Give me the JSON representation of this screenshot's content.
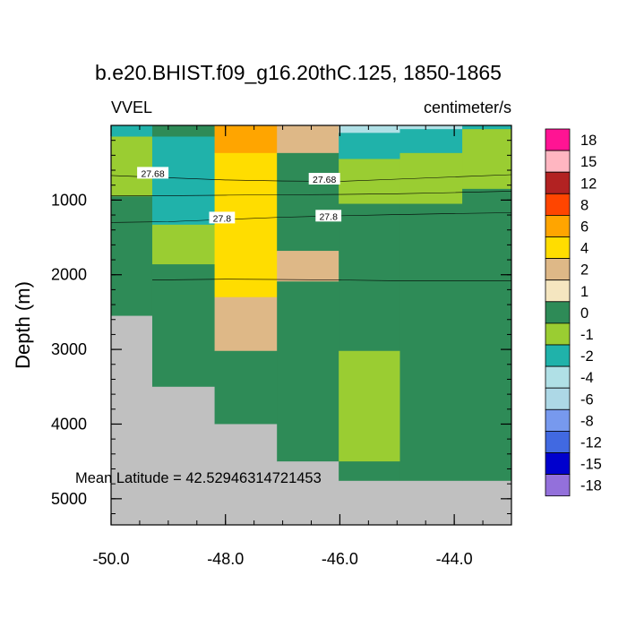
{
  "chart_data": {
    "type": "heatmap",
    "title": "b.e20.BHIST.f09_g16.20thC.125, 1850-1865",
    "left_string": "VVEL",
    "right_string": "centimeter/s",
    "ylabel": "Depth (m)",
    "annotation": "Mean Latitude = 42.52946314721453",
    "xlim": [
      -50.0,
      -43.0
    ],
    "ylim": [
      5350,
      0
    ],
    "x_ticks": [
      -50.0,
      -48.0,
      -46.0,
      -44.0
    ],
    "x_tick_labels": [
      "-50.0",
      "-48.0",
      "-46.0",
      "-44.0"
    ],
    "y_ticks": [
      1000,
      2000,
      3000,
      4000,
      5000
    ],
    "y_tick_labels": [
      "1000",
      "2000",
      "3000",
      "4000",
      "5000"
    ],
    "legend_levels": [
      "18",
      "15",
      "12",
      "8",
      "6",
      "4",
      "2",
      "1",
      "0",
      "-1",
      "-2",
      "-4",
      "-6",
      "-8",
      "-12",
      "-15",
      "-18"
    ],
    "legend_colors": [
      "#ff1493",
      "#ffb6c1",
      "#b22222",
      "#ff4500",
      "#ffa500",
      "#ffdd00",
      "#deb887",
      "#f5e6c0",
      "#2e8b57",
      "#9acd32",
      "#20b2aa",
      "#b0e0e6",
      "#add8e6",
      "#7799ee",
      "#4169e1",
      "#0000cd",
      "#9370db"
    ],
    "fill_color": "#c0c0c0",
    "columns": [
      {
        "x0": -50.0,
        "x1": -49.28,
        "cells": [
          [
            0,
            150,
            "-2"
          ],
          [
            150,
            950,
            "-1"
          ],
          [
            950,
            2550,
            "0"
          ],
          [
            2550,
            5350,
            "fill"
          ]
        ]
      },
      {
        "x0": -49.28,
        "x1": -48.19,
        "cells": [
          [
            0,
            150,
            "0"
          ],
          [
            150,
            1330,
            "-2"
          ],
          [
            1330,
            1860,
            "-1"
          ],
          [
            1860,
            3500,
            "0"
          ],
          [
            3500,
            5350,
            "fill"
          ]
        ]
      },
      {
        "x0": -48.19,
        "x1": -47.1,
        "cells": [
          [
            0,
            370,
            "6"
          ],
          [
            370,
            2300,
            "4"
          ],
          [
            2300,
            3020,
            "2"
          ],
          [
            3020,
            4000,
            "0"
          ],
          [
            4000,
            5350,
            "fill"
          ]
        ]
      },
      {
        "x0": -47.1,
        "x1": -46.02,
        "cells": [
          [
            0,
            370,
            "2"
          ],
          [
            370,
            1680,
            "0"
          ],
          [
            1680,
            2090,
            "2"
          ],
          [
            2090,
            4500,
            "0"
          ],
          [
            4500,
            5350,
            "fill"
          ]
        ]
      },
      {
        "x0": -46.02,
        "x1": -44.95,
        "cells": [
          [
            0,
            100,
            "-4"
          ],
          [
            100,
            450,
            "-2"
          ],
          [
            450,
            1050,
            "-1"
          ],
          [
            1050,
            3020,
            "0"
          ],
          [
            3020,
            4500,
            "-1"
          ],
          [
            4500,
            4760,
            "0"
          ],
          [
            4760,
            5350,
            "fill"
          ]
        ]
      },
      {
        "x0": -44.95,
        "x1": -43.86,
        "cells": [
          [
            0,
            50,
            "-4"
          ],
          [
            50,
            370,
            "-2"
          ],
          [
            370,
            1050,
            "-1"
          ],
          [
            1050,
            4760,
            "0"
          ],
          [
            4760,
            5350,
            "fill"
          ]
        ]
      },
      {
        "x0": -43.86,
        "x1": -43.0,
        "cells": [
          [
            0,
            50,
            "-2"
          ],
          [
            50,
            850,
            "-1"
          ],
          [
            850,
            4760,
            "0"
          ],
          [
            4760,
            5350,
            "fill"
          ]
        ]
      }
    ],
    "contours": [
      {
        "label": "27.68",
        "points": [
          [
            -50.0,
            670
          ],
          [
            -49.0,
            700
          ],
          [
            -48.0,
            730
          ],
          [
            -47.0,
            745
          ],
          [
            -46.0,
            750
          ],
          [
            -45.0,
            720
          ],
          [
            -44.0,
            690
          ],
          [
            -43.0,
            660
          ]
        ],
        "label_positions": [
          [
            -49.27,
            640
          ],
          [
            -46.27,
            720
          ]
        ]
      },
      {
        "label": "",
        "points": [
          [
            -50.0,
            940
          ],
          [
            -49.0,
            940
          ],
          [
            -48.0,
            935
          ],
          [
            -47.0,
            930
          ],
          [
            -46.0,
            925
          ],
          [
            -45.0,
            915
          ],
          [
            -44.0,
            900
          ],
          [
            -43.0,
            880
          ]
        ],
        "label_positions": []
      },
      {
        "label": "27.8",
        "points": [
          [
            -50.0,
            1300
          ],
          [
            -49.0,
            1290
          ],
          [
            -48.0,
            1260
          ],
          [
            -47.0,
            1230
          ],
          [
            -46.0,
            1210
          ],
          [
            -45.0,
            1195
          ],
          [
            -44.0,
            1180
          ],
          [
            -43.0,
            1170
          ]
        ],
        "label_positions": [
          [
            -48.06,
            1240
          ],
          [
            -46.2,
            1215
          ]
        ]
      },
      {
        "label": "",
        "points": [
          [
            -49.28,
            2070
          ],
          [
            -48.0,
            2060
          ],
          [
            -47.0,
            2065
          ],
          [
            -46.0,
            2070
          ],
          [
            -45.0,
            2080
          ],
          [
            -44.0,
            2080
          ],
          [
            -43.0,
            2080
          ]
        ],
        "label_positions": []
      }
    ]
  }
}
